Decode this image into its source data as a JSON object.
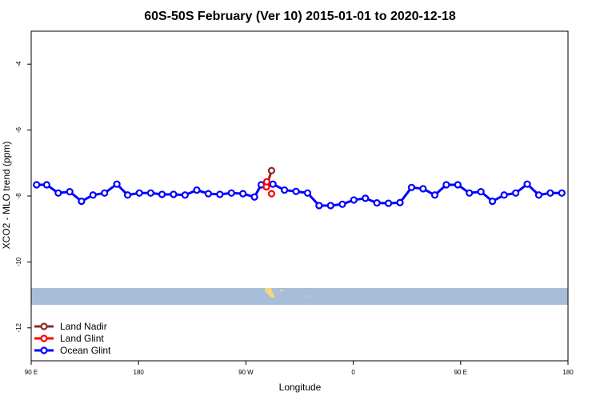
{
  "chart_data": {
    "type": "line",
    "title": "60S-50S February (Ver 10)   2015-01-01 to 2020-12-18",
    "xlabel": "Longitude",
    "ylabel": "XCO2 - MLO trend (ppm)",
    "xlim": [
      -90,
      180
    ],
    "ylim": [
      -13,
      -3
    ],
    "x_ticks": [
      {
        "value": -90,
        "label": "90 E"
      },
      {
        "value": -36,
        "label": "180"
      },
      {
        "value": 18,
        "label": "90 W"
      },
      {
        "value": 72,
        "label": "0"
      },
      {
        "value": 126,
        "label": "90 E"
      },
      {
        "value": 180,
        "label": "180"
      }
    ],
    "y_ticks": [
      {
        "value": -4,
        "label": "-4"
      },
      {
        "value": -6,
        "label": "-6"
      },
      {
        "value": -8,
        "label": "-8"
      },
      {
        "value": -10,
        "label": "-10"
      },
      {
        "value": -12,
        "label": "-12"
      }
    ],
    "grid": false,
    "legend_position": "bottom-left",
    "series": [
      {
        "name": "Land Nadir",
        "color": "#8b2a2a",
        "x": [
          28.3,
          30.9
        ],
        "y": [
          -7.72,
          -7.23
        ]
      },
      {
        "name": "Land Glint",
        "color": "#ff0000",
        "x": [
          28.3,
          28.5,
          30.9
        ],
        "y": [
          -7.72,
          -7.57,
          -7.93
        ]
      },
      {
        "name": "Ocean Glint",
        "color": "#0000ff",
        "x": [
          -87.3,
          -82.2,
          -76.4,
          -70.6,
          -64.7,
          -58.9,
          -53.1,
          -46.9,
          -41.5,
          -35.6,
          -29.9,
          -24.2,
          -18.4,
          -12.6,
          -6.7,
          -0.9,
          4.9,
          10.7,
          16.5,
          22.3,
          25.7,
          31.6,
          37.4,
          43.2,
          49.0,
          54.8,
          60.6,
          66.5,
          72.3,
          78.1,
          83.9,
          89.7,
          95.5,
          101.3,
          107.1,
          113.0,
          118.8,
          124.6,
          130.4,
          136.2,
          142.0,
          147.9,
          153.7,
          159.5,
          165.3,
          171.1,
          176.9
        ],
        "y": [
          -7.66,
          -7.66,
          -7.91,
          -7.87,
          -8.16,
          -7.97,
          -7.91,
          -7.64,
          -7.97,
          -7.91,
          -7.91,
          -7.95,
          -7.95,
          -7.97,
          -7.82,
          -7.93,
          -7.95,
          -7.91,
          -7.93,
          -8.03,
          -7.66,
          -7.64,
          -7.82,
          -7.86,
          -7.91,
          -8.29,
          -8.29,
          -8.25,
          -8.12,
          -8.07,
          -8.21,
          -8.22,
          -8.2,
          -7.74,
          -7.78,
          -7.97,
          -7.66,
          -7.66,
          -7.91,
          -7.87,
          -8.16,
          -7.97,
          -7.91,
          -7.64,
          -7.97,
          -7.91,
          -7.91
        ]
      }
    ]
  },
  "map_colors": {
    "ocean": "#a7bed9",
    "land": "#f4d67d"
  }
}
